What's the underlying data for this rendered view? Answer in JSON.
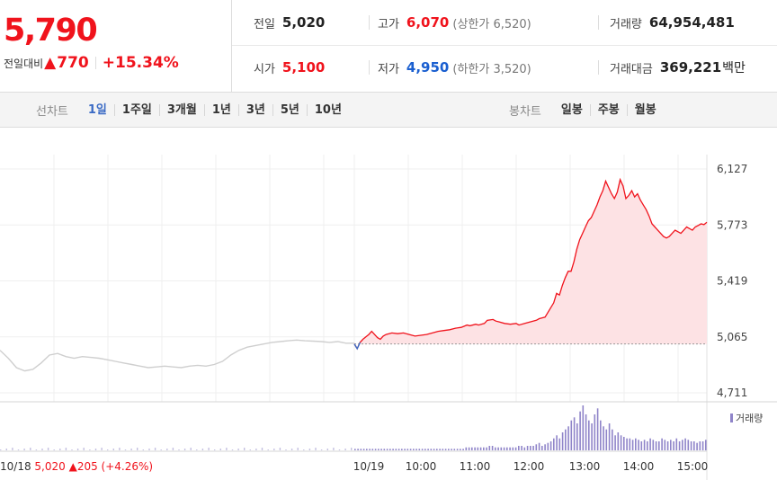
{
  "summary": {
    "price": "5,790",
    "change_label": "전일대비",
    "change_arrow": "▲",
    "change_value": "770",
    "change_pct": "+15.34%",
    "prev_close": {
      "label": "전일",
      "value": "5,020"
    },
    "high": {
      "label": "고가",
      "value": "6,070",
      "limit": "(상한가 6,520)"
    },
    "volume": {
      "label": "거래량",
      "value": "64,954,481"
    },
    "open": {
      "label": "시가",
      "value": "5,100"
    },
    "low": {
      "label": "저가",
      "value": "4,950",
      "limit": "(하한가 3,520)"
    },
    "trade_value": {
      "label": "거래대금",
      "value": "369,221",
      "unit": "백만"
    }
  },
  "toolbar": {
    "line_chart_label": "선차트",
    "periods": [
      "1일",
      "1주일",
      "3개월",
      "1년",
      "3년",
      "5년",
      "10년"
    ],
    "active_period": "1일",
    "candle_label": "봉차트",
    "candles": [
      "일봉",
      "주봉",
      "월봉"
    ]
  },
  "chart_data": {
    "type": "line",
    "ylim": [
      4711,
      6127
    ],
    "yticks": [
      "6,127",
      "5,773",
      "5,419",
      "5,065",
      "4,711"
    ],
    "base_price": 5020,
    "x_labels": [
      "10/19",
      "10:00",
      "11:00",
      "12:00",
      "13:00",
      "14:00",
      "15:00"
    ],
    "prev_day": {
      "label": "10/18",
      "close": "5,020",
      "change_arrow": "▲",
      "change": "205",
      "change_pct": "(+4.26%)",
      "points": [
        [
          0,
          4980
        ],
        [
          2,
          4930
        ],
        [
          4,
          4870
        ],
        [
          6,
          4850
        ],
        [
          8,
          4860
        ],
        [
          10,
          4900
        ],
        [
          12,
          4950
        ],
        [
          14,
          4960
        ],
        [
          16,
          4940
        ],
        [
          18,
          4930
        ],
        [
          20,
          4940
        ],
        [
          22,
          4935
        ],
        [
          24,
          4930
        ],
        [
          26,
          4920
        ],
        [
          28,
          4910
        ],
        [
          30,
          4900
        ],
        [
          32,
          4890
        ],
        [
          34,
          4880
        ],
        [
          36,
          4870
        ],
        [
          38,
          4875
        ],
        [
          40,
          4880
        ],
        [
          42,
          4875
        ],
        [
          44,
          4870
        ],
        [
          46,
          4880
        ],
        [
          48,
          4885
        ],
        [
          50,
          4880
        ],
        [
          52,
          4890
        ],
        [
          54,
          4910
        ],
        [
          56,
          4950
        ],
        [
          58,
          4980
        ],
        [
          60,
          5000
        ],
        [
          62,
          5010
        ],
        [
          64,
          5020
        ],
        [
          66,
          5030
        ],
        [
          68,
          5035
        ],
        [
          70,
          5040
        ],
        [
          72,
          5045
        ],
        [
          74,
          5040
        ],
        [
          76,
          5038
        ],
        [
          78,
          5035
        ],
        [
          80,
          5030
        ],
        [
          82,
          5035
        ],
        [
          84,
          5025
        ],
        [
          86,
          5025
        ]
      ]
    },
    "today": {
      "label": "10/19",
      "points": [
        [
          0,
          5020
        ],
        [
          1,
          4990
        ],
        [
          2,
          5030
        ],
        [
          3,
          5050
        ],
        [
          5,
          5080
        ],
        [
          6,
          5100
        ],
        [
          7,
          5080
        ],
        [
          8,
          5060
        ],
        [
          9,
          5050
        ],
        [
          10,
          5070
        ],
        [
          11,
          5080
        ],
        [
          13,
          5090
        ],
        [
          15,
          5085
        ],
        [
          17,
          5090
        ],
        [
          19,
          5080
        ],
        [
          21,
          5070
        ],
        [
          23,
          5075
        ],
        [
          25,
          5080
        ],
        [
          27,
          5090
        ],
        [
          29,
          5100
        ],
        [
          31,
          5105
        ],
        [
          33,
          5110
        ],
        [
          35,
          5120
        ],
        [
          37,
          5125
        ],
        [
          39,
          5140
        ],
        [
          40,
          5135
        ],
        [
          42,
          5145
        ],
        [
          43,
          5140
        ],
        [
          45,
          5150
        ],
        [
          46,
          5170
        ],
        [
          48,
          5175
        ],
        [
          49,
          5165
        ],
        [
          50,
          5160
        ],
        [
          52,
          5150
        ],
        [
          54,
          5145
        ],
        [
          56,
          5150
        ],
        [
          57,
          5140
        ],
        [
          59,
          5150
        ],
        [
          61,
          5160
        ],
        [
          63,
          5170
        ],
        [
          64,
          5180
        ],
        [
          65,
          5185
        ],
        [
          66,
          5190
        ],
        [
          68,
          5250
        ],
        [
          69,
          5280
        ],
        [
          70,
          5340
        ],
        [
          71,
          5330
        ],
        [
          72,
          5390
        ],
        [
          73,
          5440
        ],
        [
          74,
          5480
        ],
        [
          75,
          5480
        ],
        [
          76,
          5540
        ],
        [
          77,
          5620
        ],
        [
          78,
          5680
        ],
        [
          79,
          5720
        ],
        [
          80,
          5760
        ],
        [
          81,
          5800
        ],
        [
          82,
          5820
        ],
        [
          83,
          5860
        ],
        [
          84,
          5900
        ],
        [
          85,
          5950
        ],
        [
          86,
          5990
        ],
        [
          87,
          6050
        ],
        [
          88,
          6010
        ],
        [
          89,
          5970
        ],
        [
          90,
          5940
        ],
        [
          91,
          5980
        ],
        [
          92,
          6060
        ],
        [
          93,
          6020
        ],
        [
          94,
          5940
        ],
        [
          95,
          5960
        ],
        [
          96,
          5990
        ],
        [
          97,
          5950
        ],
        [
          98,
          5970
        ],
        [
          99,
          5930
        ],
        [
          100,
          5900
        ],
        [
          101,
          5870
        ],
        [
          102,
          5830
        ],
        [
          103,
          5780
        ],
        [
          104,
          5760
        ],
        [
          105,
          5740
        ],
        [
          106,
          5720
        ],
        [
          107,
          5700
        ],
        [
          108,
          5690
        ],
        [
          109,
          5700
        ],
        [
          110,
          5720
        ],
        [
          111,
          5740
        ],
        [
          112,
          5730
        ],
        [
          113,
          5720
        ],
        [
          114,
          5740
        ],
        [
          115,
          5760
        ],
        [
          116,
          5750
        ],
        [
          117,
          5740
        ],
        [
          118,
          5760
        ],
        [
          119,
          5770
        ],
        [
          120,
          5780
        ],
        [
          121,
          5775
        ],
        [
          122,
          5790
        ]
      ]
    },
    "volume_label": "거래량",
    "today_volume": [
      1,
      1,
      1,
      1,
      1,
      1,
      1,
      1,
      1,
      1,
      1,
      1,
      1,
      1,
      1,
      1,
      1,
      1,
      1,
      1,
      1,
      1,
      1,
      1,
      1,
      1,
      1,
      1,
      1,
      1,
      1,
      1,
      1,
      1,
      1,
      1,
      1,
      1,
      2,
      2,
      2,
      2,
      2,
      2,
      2,
      2,
      3,
      3,
      2,
      2,
      2,
      2,
      2,
      2,
      2,
      2,
      3,
      3,
      2,
      3,
      3,
      3,
      4,
      5,
      3,
      4,
      5,
      6,
      8,
      10,
      8,
      12,
      14,
      16,
      20,
      22,
      18,
      26,
      30,
      24,
      20,
      18,
      24,
      28,
      20,
      16,
      14,
      18,
      14,
      10,
      12,
      10,
      9,
      8,
      8,
      7,
      8,
      7,
      6,
      7,
      6,
      8,
      7,
      6,
      6,
      8,
      7,
      6,
      7,
      6,
      8,
      6,
      7,
      8,
      7,
      6,
      6,
      5,
      6,
      6,
      7
    ]
  }
}
